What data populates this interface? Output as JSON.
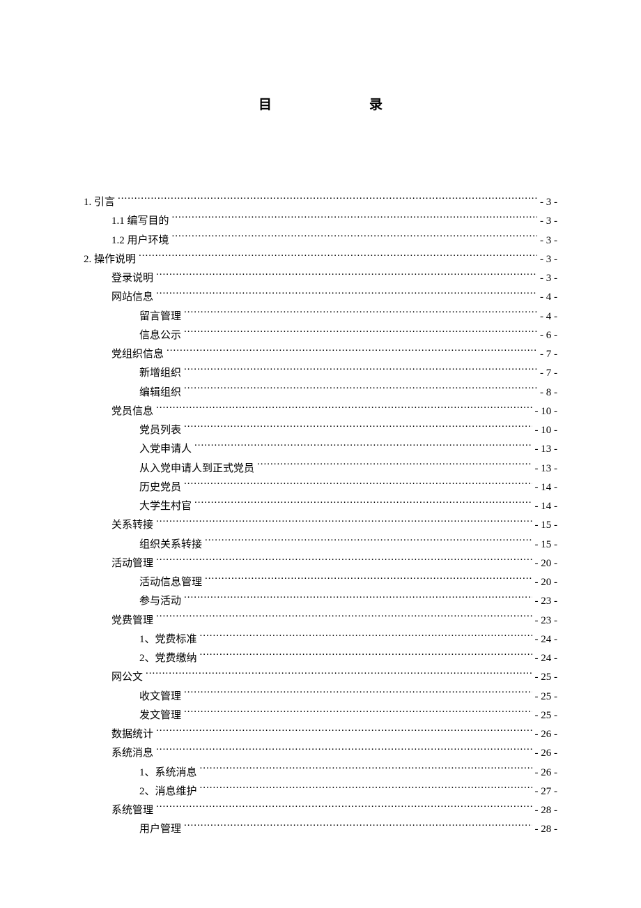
{
  "title": {
    "char1": "目",
    "char2": "录"
  },
  "toc": [
    {
      "label": "1. 引言",
      "page": "- 3 -",
      "indent": 0
    },
    {
      "label": "1.1 编写目的",
      "page": "- 3 -",
      "indent": 1
    },
    {
      "label": "1.2 用户环境",
      "page": "- 3 -",
      "indent": 1
    },
    {
      "label": "2. 操作说明",
      "page": "- 3 -",
      "indent": 0
    },
    {
      "label": "登录说明",
      "page": "- 3 -",
      "indent": 1
    },
    {
      "label": "网站信息",
      "page": "- 4 -",
      "indent": 1
    },
    {
      "label": "留言管理",
      "page": "- 4 -",
      "indent": 2
    },
    {
      "label": "信息公示",
      "page": "- 6 -",
      "indent": 2
    },
    {
      "label": "党组织信息",
      "page": "- 7 -",
      "indent": 1
    },
    {
      "label": "新增组织",
      "page": "- 7 -",
      "indent": 2
    },
    {
      "label": "编辑组织",
      "page": "- 8 -",
      "indent": 2
    },
    {
      "label": "党员信息",
      "page": "- 10 -",
      "indent": 1
    },
    {
      "label": "党员列表",
      "page": "- 10 -",
      "indent": 2
    },
    {
      "label": "入党申请人",
      "page": "- 13 -",
      "indent": 2
    },
    {
      "label": "从入党申请人到正式党员",
      "page": "- 13 -",
      "indent": 2
    },
    {
      "label": "历史党员",
      "page": "- 14 -",
      "indent": 2
    },
    {
      "label": "大学生村官",
      "page": "- 14 -",
      "indent": 2
    },
    {
      "label": "关系转接",
      "page": "- 15 -",
      "indent": 1
    },
    {
      "label": "组织关系转接",
      "page": "- 15 -",
      "indent": 2
    },
    {
      "label": "活动管理",
      "page": "- 20 -",
      "indent": 1
    },
    {
      "label": "活动信息管理",
      "page": "- 20 -",
      "indent": 2
    },
    {
      "label": "参与活动",
      "page": "- 23 -",
      "indent": 2
    },
    {
      "label": "党费管理",
      "page": "- 23 -",
      "indent": 1
    },
    {
      "label": "1、党费标准",
      "page": "- 24 -",
      "indent": 2
    },
    {
      "label": "2、党费缴纳",
      "page": "- 24 -",
      "indent": 2
    },
    {
      "label": "网公文",
      "page": "- 25 -",
      "indent": 1
    },
    {
      "label": "收文管理",
      "page": "- 25 -",
      "indent": 2
    },
    {
      "label": "发文管理",
      "page": "- 25 -",
      "indent": 2
    },
    {
      "label": "数据统计",
      "page": "- 26 -",
      "indent": 1
    },
    {
      "label": "系统消息",
      "page": "- 26 -",
      "indent": 1
    },
    {
      "label": "1、系统消息",
      "page": "- 26 -",
      "indent": 2
    },
    {
      "label": "2、消息维护",
      "page": "- 27 -",
      "indent": 2
    },
    {
      "label": "系统管理",
      "page": "- 28 -",
      "indent": 1
    },
    {
      "label": "用户管理",
      "page": "- 28 -",
      "indent": 2
    }
  ]
}
